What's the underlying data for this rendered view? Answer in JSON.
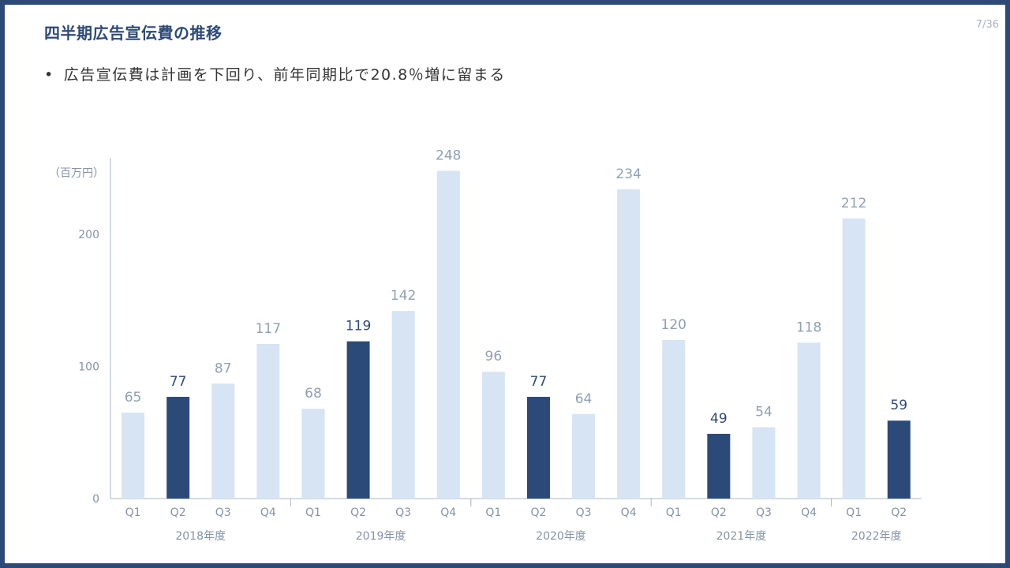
{
  "slide": {
    "title": "四半期広告宣伝費の推移",
    "page": "7/36",
    "bullet_marker": "•",
    "bullet_text": "広告宣伝費は計画を下回り、前年同期比で20.8％増に留まる"
  },
  "colors": {
    "frame": "#2d4a77",
    "highlight_bar": "#2b4a78",
    "normal_bar": "#d6e4f4",
    "highlight_label": "#2d4a77",
    "normal_label": "#8fa0b5",
    "axis_text": "#8593a6"
  },
  "chart_data": {
    "type": "bar",
    "unit_label": "（百万円）",
    "ylim": [
      0,
      250
    ],
    "yticks": [
      0,
      100,
      200
    ],
    "grid": false,
    "legend": "none",
    "categories": [
      "Q1",
      "Q2",
      "Q3",
      "Q4",
      "Q1",
      "Q2",
      "Q3",
      "Q4",
      "Q1",
      "Q2",
      "Q3",
      "Q4",
      "Q1",
      "Q2",
      "Q3",
      "Q4",
      "Q1",
      "Q2"
    ],
    "values": [
      65,
      77,
      87,
      117,
      68,
      119,
      142,
      248,
      96,
      77,
      64,
      234,
      120,
      49,
      54,
      118,
      212,
      59
    ],
    "highlighted": [
      false,
      true,
      false,
      false,
      false,
      true,
      false,
      false,
      false,
      true,
      false,
      false,
      false,
      true,
      false,
      false,
      false,
      true
    ],
    "groups": [
      {
        "label": "2018年度",
        "count": 4
      },
      {
        "label": "2019年度",
        "count": 4
      },
      {
        "label": "2020年度",
        "count": 4
      },
      {
        "label": "2021年度",
        "count": 4
      },
      {
        "label": "2022年度",
        "count": 2
      }
    ]
  }
}
